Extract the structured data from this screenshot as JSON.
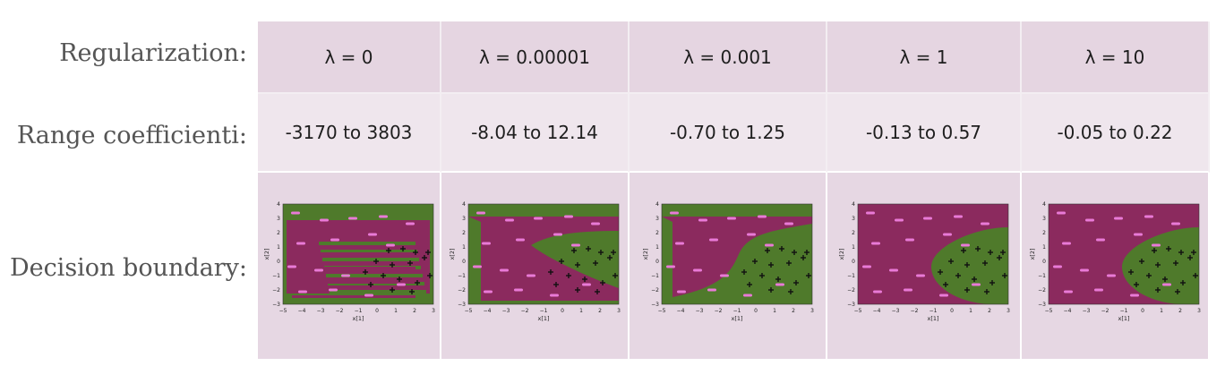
{
  "row_labels": {
    "regularization": "Regularization:",
    "range": "Range coefficienti:",
    "boundary": "Decision boundary:"
  },
  "columns": [
    {
      "lambda": "λ = 0",
      "range": "-3170 to 3803"
    },
    {
      "lambda": "λ = 0.00001",
      "range": "-8.04 to 12.14"
    },
    {
      "lambda": "λ = 0.001",
      "range": "-0.70 to 1.25"
    },
    {
      "lambda": "λ = 1",
      "range": "-0.13 to 0.57"
    },
    {
      "lambda": "λ = 10",
      "range": "-0.05 to 0.22"
    }
  ],
  "plot_axes": {
    "xlabel": "x[1]",
    "ylabel": "x[2]",
    "xticks": [
      "−5",
      "−4",
      "−3",
      "−2",
      "−1",
      "0",
      "1",
      "2",
      "3"
    ],
    "yticks": [
      "4",
      "3",
      "2",
      "1",
      "0",
      "−1",
      "−2",
      "−3"
    ]
  },
  "colors": {
    "magenta_region": "#8b2a5e",
    "green_region": "#4f7a2b",
    "negative_marker": "#e97ad7",
    "positive_marker": "#111111"
  }
}
